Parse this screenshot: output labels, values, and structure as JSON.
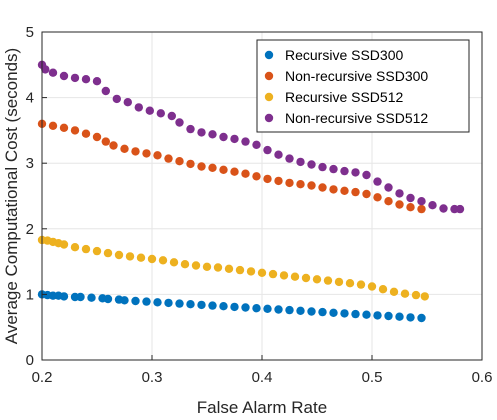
{
  "chart_data": {
    "type": "scatter",
    "xlabel": "False Alarm Rate",
    "ylabel": "Average Computational Cost (seconds)",
    "xlim": [
      0.2,
      0.6
    ],
    "ylim": [
      0,
      5
    ],
    "xticks": [
      "0.2",
      "0.3",
      "0.4",
      "0.5",
      "0.6"
    ],
    "yticks": [
      "0",
      "1",
      "2",
      "3",
      "4",
      "5"
    ],
    "grid": true,
    "legend_position": "top-right",
    "series": [
      {
        "name": "Recursive SSD300",
        "color": "#0072BD",
        "points": [
          [
            0.2,
            1.0
          ],
          [
            0.205,
            0.99
          ],
          [
            0.21,
            0.98
          ],
          [
            0.215,
            0.98
          ],
          [
            0.22,
            0.97
          ],
          [
            0.23,
            0.96
          ],
          [
            0.235,
            0.96
          ],
          [
            0.245,
            0.95
          ],
          [
            0.255,
            0.94
          ],
          [
            0.26,
            0.93
          ],
          [
            0.27,
            0.92
          ],
          [
            0.275,
            0.91
          ],
          [
            0.285,
            0.9
          ],
          [
            0.295,
            0.89
          ],
          [
            0.305,
            0.88
          ],
          [
            0.315,
            0.87
          ],
          [
            0.325,
            0.86
          ],
          [
            0.335,
            0.85
          ],
          [
            0.345,
            0.84
          ],
          [
            0.355,
            0.83
          ],
          [
            0.365,
            0.82
          ],
          [
            0.375,
            0.81
          ],
          [
            0.385,
            0.8
          ],
          [
            0.395,
            0.79
          ],
          [
            0.405,
            0.78
          ],
          [
            0.415,
            0.77
          ],
          [
            0.425,
            0.76
          ],
          [
            0.435,
            0.75
          ],
          [
            0.445,
            0.74
          ],
          [
            0.455,
            0.73
          ],
          [
            0.465,
            0.72
          ],
          [
            0.475,
            0.71
          ],
          [
            0.485,
            0.7
          ],
          [
            0.495,
            0.69
          ],
          [
            0.505,
            0.68
          ],
          [
            0.515,
            0.67
          ],
          [
            0.525,
            0.66
          ],
          [
            0.535,
            0.65
          ],
          [
            0.545,
            0.64
          ]
        ]
      },
      {
        "name": "Non-recursive SSD300",
        "color": "#D95319",
        "points": [
          [
            0.2,
            3.6
          ],
          [
            0.21,
            3.57
          ],
          [
            0.22,
            3.54
          ],
          [
            0.23,
            3.5
          ],
          [
            0.24,
            3.45
          ],
          [
            0.25,
            3.4
          ],
          [
            0.258,
            3.33
          ],
          [
            0.265,
            3.27
          ],
          [
            0.275,
            3.22
          ],
          [
            0.285,
            3.18
          ],
          [
            0.295,
            3.15
          ],
          [
            0.305,
            3.12
          ],
          [
            0.315,
            3.07
          ],
          [
            0.325,
            3.03
          ],
          [
            0.335,
            2.99
          ],
          [
            0.345,
            2.95
          ],
          [
            0.355,
            2.93
          ],
          [
            0.365,
            2.9
          ],
          [
            0.375,
            2.87
          ],
          [
            0.385,
            2.84
          ],
          [
            0.395,
            2.8
          ],
          [
            0.405,
            2.76
          ],
          [
            0.415,
            2.73
          ],
          [
            0.425,
            2.7
          ],
          [
            0.435,
            2.68
          ],
          [
            0.445,
            2.66
          ],
          [
            0.455,
            2.63
          ],
          [
            0.465,
            2.6
          ],
          [
            0.475,
            2.58
          ],
          [
            0.485,
            2.56
          ],
          [
            0.495,
            2.53
          ],
          [
            0.505,
            2.48
          ],
          [
            0.515,
            2.42
          ],
          [
            0.525,
            2.37
          ],
          [
            0.535,
            2.33
          ],
          [
            0.545,
            2.3
          ]
        ]
      },
      {
        "name": "Recursive SSD512",
        "color": "#EDB120",
        "points": [
          [
            0.2,
            1.83
          ],
          [
            0.205,
            1.82
          ],
          [
            0.21,
            1.8
          ],
          [
            0.215,
            1.78
          ],
          [
            0.22,
            1.76
          ],
          [
            0.23,
            1.72
          ],
          [
            0.24,
            1.69
          ],
          [
            0.25,
            1.66
          ],
          [
            0.26,
            1.63
          ],
          [
            0.27,
            1.6
          ],
          [
            0.28,
            1.58
          ],
          [
            0.29,
            1.56
          ],
          [
            0.3,
            1.54
          ],
          [
            0.31,
            1.52
          ],
          [
            0.32,
            1.49
          ],
          [
            0.33,
            1.46
          ],
          [
            0.34,
            1.44
          ],
          [
            0.35,
            1.42
          ],
          [
            0.36,
            1.41
          ],
          [
            0.37,
            1.39
          ],
          [
            0.38,
            1.37
          ],
          [
            0.39,
            1.35
          ],
          [
            0.4,
            1.33
          ],
          [
            0.41,
            1.31
          ],
          [
            0.42,
            1.29
          ],
          [
            0.43,
            1.27
          ],
          [
            0.44,
            1.25
          ],
          [
            0.45,
            1.23
          ],
          [
            0.46,
            1.21
          ],
          [
            0.47,
            1.19
          ],
          [
            0.48,
            1.17
          ],
          [
            0.49,
            1.15
          ],
          [
            0.5,
            1.12
          ],
          [
            0.51,
            1.08
          ],
          [
            0.52,
            1.04
          ],
          [
            0.53,
            1.01
          ],
          [
            0.54,
            0.99
          ],
          [
            0.548,
            0.97
          ]
        ]
      },
      {
        "name": "Non-recursive SSD512",
        "color": "#7E2F8E",
        "points": [
          [
            0.2,
            4.5
          ],
          [
            0.203,
            4.43
          ],
          [
            0.21,
            4.38
          ],
          [
            0.22,
            4.33
          ],
          [
            0.23,
            4.3
          ],
          [
            0.24,
            4.28
          ],
          [
            0.25,
            4.25
          ],
          [
            0.258,
            4.1
          ],
          [
            0.268,
            3.98
          ],
          [
            0.278,
            3.93
          ],
          [
            0.288,
            3.85
          ],
          [
            0.298,
            3.8
          ],
          [
            0.308,
            3.76
          ],
          [
            0.318,
            3.72
          ],
          [
            0.325,
            3.62
          ],
          [
            0.335,
            3.52
          ],
          [
            0.345,
            3.47
          ],
          [
            0.355,
            3.44
          ],
          [
            0.365,
            3.4
          ],
          [
            0.375,
            3.37
          ],
          [
            0.385,
            3.33
          ],
          [
            0.395,
            3.28
          ],
          [
            0.405,
            3.2
          ],
          [
            0.415,
            3.13
          ],
          [
            0.425,
            3.07
          ],
          [
            0.435,
            3.02
          ],
          [
            0.445,
            2.98
          ],
          [
            0.455,
            2.94
          ],
          [
            0.465,
            2.91
          ],
          [
            0.475,
            2.88
          ],
          [
            0.485,
            2.86
          ],
          [
            0.495,
            2.82
          ],
          [
            0.505,
            2.72
          ],
          [
            0.515,
            2.63
          ],
          [
            0.525,
            2.54
          ],
          [
            0.535,
            2.47
          ],
          [
            0.545,
            2.42
          ],
          [
            0.555,
            2.36
          ],
          [
            0.565,
            2.31
          ],
          [
            0.575,
            2.3
          ],
          [
            0.58,
            2.3
          ]
        ]
      }
    ]
  }
}
